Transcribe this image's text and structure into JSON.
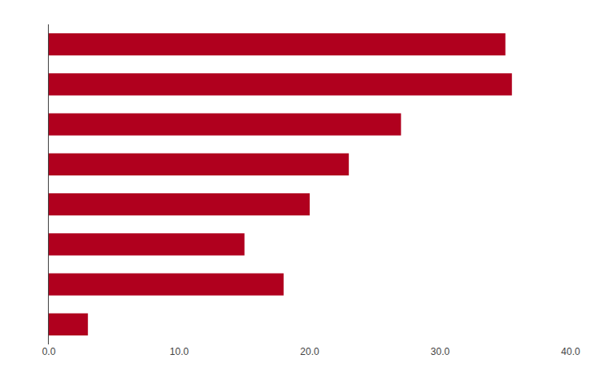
{
  "chart_data": {
    "type": "bar",
    "orientation": "horizontal",
    "categories": [
      null,
      null,
      null,
      null,
      null,
      null,
      null,
      null
    ],
    "values": [
      35.0,
      35.5,
      27.0,
      23.0,
      20.0,
      15.0,
      18.0,
      3.0
    ],
    "color": "#b0001e",
    "xlim": [
      0,
      40
    ],
    "xticks": [
      {
        "value": 0,
        "label": "0.0"
      },
      {
        "value": 10,
        "label": "10.0"
      },
      {
        "value": 20,
        "label": "20.0"
      },
      {
        "value": 30,
        "label": "30.0"
      },
      {
        "value": 40,
        "label": "40.0"
      }
    ],
    "grid": false,
    "tick_labels": "x"
  }
}
